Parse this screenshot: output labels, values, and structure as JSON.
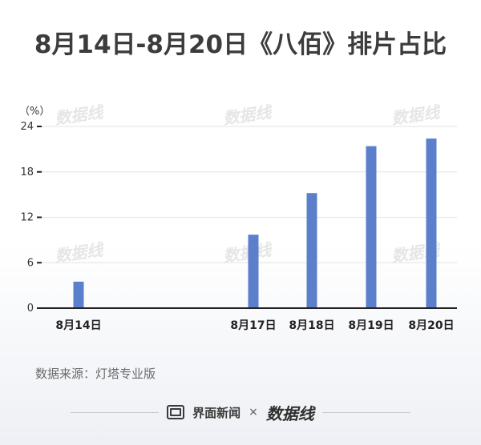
{
  "title": "8月14日-8月20日《八佰》排片占比",
  "unit": "（%）",
  "source": "数据来源：灯塔专业版",
  "footer": {
    "brand1": "界面新闻",
    "separator": "×",
    "brand2": "数据线"
  },
  "watermark": "数据线",
  "colors": {
    "bar": "#5b7fcb",
    "axis": "#222222",
    "grid": "#e3e3e3"
  },
  "chart_data": {
    "type": "bar",
    "title": "8月14日-8月20日《八佰》排片占比",
    "xlabel": "",
    "ylabel": "（%）",
    "categories": [
      "8月14日",
      "8月17日",
      "8月18日",
      "8月19日",
      "8月20日"
    ],
    "values": [
      3.5,
      9.7,
      15.2,
      21.4,
      22.4
    ],
    "ylim": [
      0,
      24
    ],
    "yticks": [
      0,
      6,
      12,
      18,
      24
    ],
    "grid": true
  }
}
